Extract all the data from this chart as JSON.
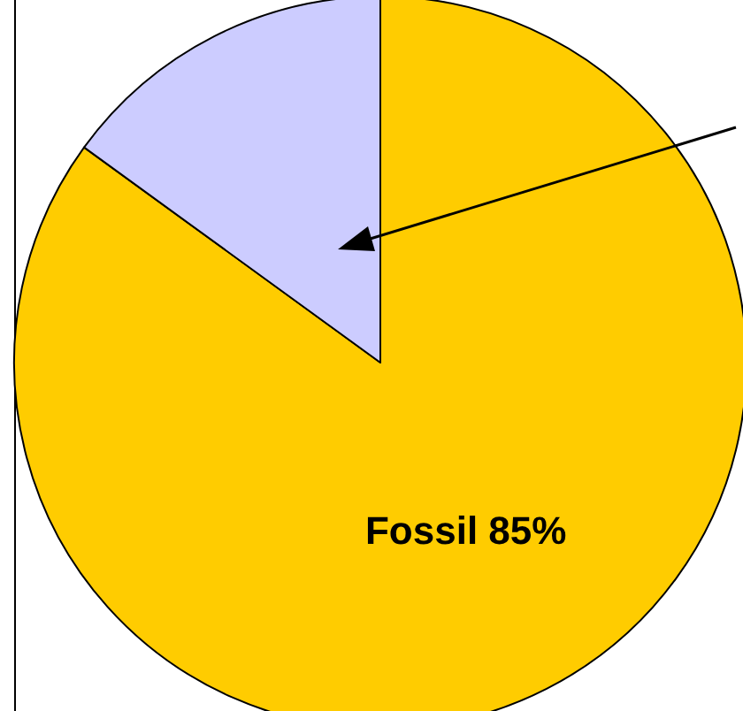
{
  "chart_data": {
    "type": "pie",
    "categories": [
      "Fossil",
      null
    ],
    "values": [
      85,
      15
    ],
    "colors": [
      "#ffcc00",
      "#ccccff"
    ],
    "value_labels": [
      "85%",
      null
    ],
    "legend": false
  }
}
